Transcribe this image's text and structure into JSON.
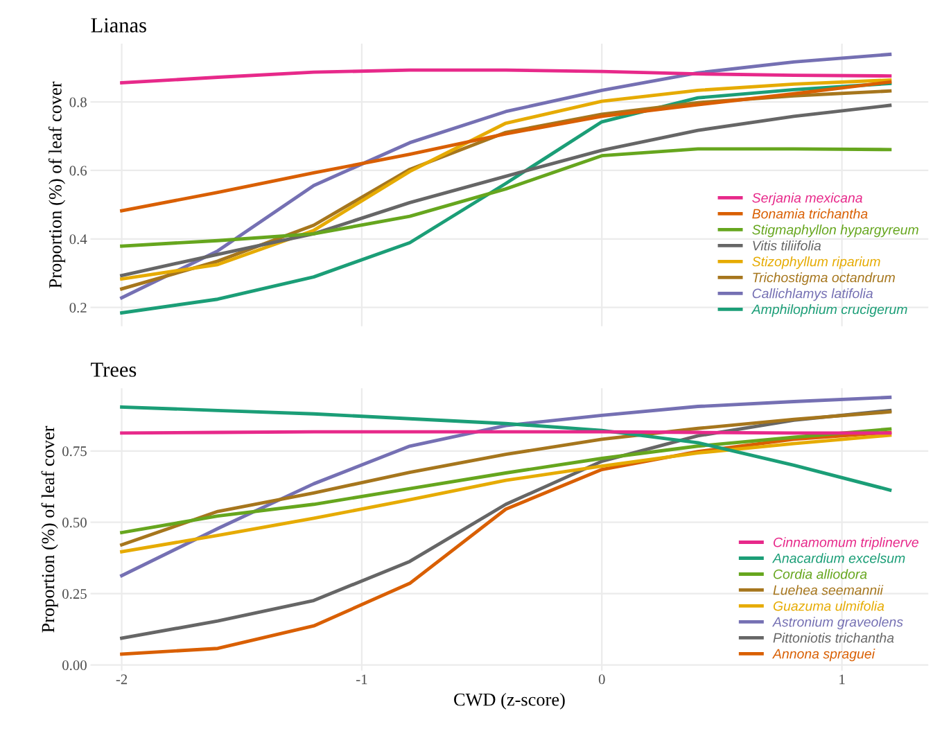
{
  "chart_data": [
    {
      "type": "line",
      "title": "Lianas",
      "ylabel": "Proportion (%) of leaf cover",
      "x": [
        -2,
        -1.6,
        -1.2,
        -0.8,
        -0.4,
        0,
        0.4,
        0.8,
        1.2
      ],
      "xlim": [
        -2.13,
        1.36
      ],
      "xticks": [
        -2,
        -1,
        0,
        1
      ],
      "ylim": [
        0.145,
        0.97
      ],
      "yticks": [
        0.2,
        0.4,
        0.6,
        0.8
      ],
      "grid": true,
      "legend": "lower right",
      "tick_labels": "y",
      "series": [
        {
          "name": "Serjania mexicana",
          "color": "#e7298a",
          "values": [
            0.856,
            0.872,
            0.887,
            0.893,
            0.893,
            0.889,
            0.882,
            0.878,
            0.876
          ]
        },
        {
          "name": "Bonamia trichantha",
          "color": "#d95f02",
          "values": [
            0.482,
            0.536,
            0.593,
            0.647,
            0.707,
            0.758,
            0.792,
            0.824,
            0.858
          ]
        },
        {
          "name": "Stigmaphyllon hypargyreum",
          "color": "#66a61e",
          "values": [
            0.379,
            0.395,
            0.415,
            0.466,
            0.546,
            0.643,
            0.663,
            0.663,
            0.661
          ]
        },
        {
          "name": "Vitis tiliifolia",
          "color": "#666666",
          "values": [
            0.293,
            0.355,
            0.415,
            0.506,
            0.583,
            0.659,
            0.717,
            0.758,
            0.79
          ]
        },
        {
          "name": "Stizophyllum riparium",
          "color": "#e6ab02",
          "values": [
            0.283,
            0.325,
            0.425,
            0.597,
            0.738,
            0.802,
            0.834,
            0.852,
            0.864
          ]
        },
        {
          "name": "Trichostigma octandrum",
          "color": "#a6761d",
          "values": [
            0.254,
            0.335,
            0.44,
            0.603,
            0.711,
            0.764,
            0.798,
            0.818,
            0.832
          ]
        },
        {
          "name": "Callichlamys latifolia",
          "color": "#7570b3",
          "values": [
            0.228,
            0.365,
            0.556,
            0.681,
            0.772,
            0.834,
            0.885,
            0.917,
            0.939
          ]
        },
        {
          "name": "Amphilophium crucigerum",
          "color": "#1b9e77",
          "values": [
            0.184,
            0.224,
            0.289,
            0.389,
            0.562,
            0.742,
            0.812,
            0.836,
            0.854
          ]
        }
      ]
    },
    {
      "type": "line",
      "title": "Trees",
      "ylabel": "Proportion (%) of leaf cover",
      "xlabel": "CWD (z-score)",
      "x": [
        -2,
        -1.6,
        -1.2,
        -0.8,
        -0.4,
        0,
        0.4,
        0.8,
        1.2
      ],
      "xlim": [
        -2.13,
        1.36
      ],
      "xticks": [
        -2,
        -1,
        0,
        1
      ],
      "ylim": [
        -0.02,
        0.97
      ],
      "yticks": [
        {
          "value": 0,
          "label": "0.00"
        },
        {
          "value": 0.25,
          "label": "0.25"
        },
        {
          "value": 0.5,
          "label": "0.50"
        },
        {
          "value": 0.75,
          "label": "0.75"
        }
      ],
      "grid": true,
      "legend": "lower right",
      "series": [
        {
          "name": "Cinnamomum triplinerve",
          "color": "#e7298a",
          "values": [
            0.813,
            0.815,
            0.817,
            0.817,
            0.817,
            0.817,
            0.815,
            0.813,
            0.813
          ]
        },
        {
          "name": "Anacardium excelsum",
          "color": "#1b9e77",
          "values": [
            0.904,
            0.892,
            0.88,
            0.863,
            0.846,
            0.822,
            0.779,
            0.7,
            0.613
          ]
        },
        {
          "name": "Cordia alliodora",
          "color": "#66a61e",
          "values": [
            0.464,
            0.522,
            0.563,
            0.618,
            0.673,
            0.724,
            0.767,
            0.798,
            0.827
          ]
        },
        {
          "name": "Luehea seemannii",
          "color": "#a6761d",
          "values": [
            0.421,
            0.538,
            0.603,
            0.675,
            0.738,
            0.791,
            0.829,
            0.861,
            0.887
          ]
        },
        {
          "name": "Guazuma ulmifolia",
          "color": "#e6ab02",
          "values": [
            0.397,
            0.454,
            0.514,
            0.579,
            0.647,
            0.697,
            0.743,
            0.776,
            0.805
          ]
        },
        {
          "name": "Astronium graveolens",
          "color": "#7570b3",
          "values": [
            0.313,
            0.478,
            0.635,
            0.767,
            0.839,
            0.875,
            0.906,
            0.923,
            0.938
          ]
        },
        {
          "name": "Pittoniotis trichantha",
          "color": "#666666",
          "values": [
            0.094,
            0.154,
            0.226,
            0.363,
            0.563,
            0.714,
            0.803,
            0.858,
            0.892
          ]
        },
        {
          "name": "Annona spraguei",
          "color": "#d95f02",
          "values": [
            0.038,
            0.058,
            0.137,
            0.286,
            0.546,
            0.685,
            0.748,
            0.791,
            0.815
          ]
        }
      ]
    }
  ]
}
